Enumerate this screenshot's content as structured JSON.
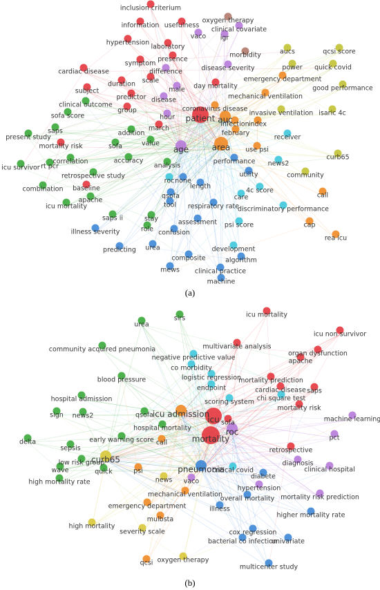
{
  "panels": [
    {
      "caption": "(a)",
      "nodes": [
        "inclusion criterium",
        "oxygen therapy",
        "information",
        "usefulness",
        "vaco",
        "igr",
        "clinical covariate",
        "aucs",
        "qcsi score",
        "hypertension",
        "laboratory",
        "morbidity",
        "power",
        "symptom",
        "presence",
        "quick covid",
        "cardiac disease",
        "difference",
        "disease severity",
        "emergency department",
        "duration",
        "scale",
        "male",
        "day mortality",
        "good performance",
        "subject",
        "predictor",
        "disease",
        "mechanical ventilation",
        "clinical outcome",
        "coronavirus disease",
        "invasive ventilation",
        "isaric 4c",
        "sofa score",
        "group",
        "hour",
        "patient",
        "auc",
        "infection",
        "index",
        "february",
        "saps",
        "addition",
        "march",
        "present study",
        "mortality risk",
        "sofa",
        "value",
        "age",
        "area",
        "use psi",
        "receiver",
        "curb65",
        "correlation",
        "accuracy",
        "analysis",
        "performance",
        "news2",
        "icu survivor",
        "rt pcr",
        "retrospective study",
        "roc",
        "none",
        "length",
        "utility",
        "community",
        "combination",
        "baseline",
        "qsofa",
        "4c score",
        "care",
        "call",
        "apache",
        "tool",
        "respiratory rate",
        "discriminatory performance",
        "icu mortality",
        "saps ii",
        "stay",
        "assessment",
        "psi score",
        "cap",
        "illness severity",
        "role",
        "confusion",
        "rea icu",
        "predicting",
        "urea",
        "development",
        "composite",
        "algorithm",
        "mews",
        "clinical practice",
        "machine"
      ]
    },
    {
      "caption": "(b)",
      "nodes": [
        "urea",
        "sirs",
        "icu mortality",
        "icu non survivor",
        "multivariate analysis",
        "community acquired pneumonia",
        "organ dysfunction",
        "negative predictive value",
        "co morbidity",
        "apache",
        "logistic regression",
        "blood pressure",
        "endpoint",
        "mortality prediction",
        "saps",
        "cardiac disease",
        "chi square test",
        "hospital admission",
        "scoring system",
        "sign",
        "news2",
        "qsofa",
        "icu admission",
        "icu",
        "sofa",
        "mortality risk",
        "machine learning",
        "hospital mortality",
        "roc",
        "pct",
        "early warning score",
        "call",
        "delta",
        "mortality",
        "retrospective",
        "sepsis",
        "curb65",
        "low risk group",
        "pneumonia",
        "diagnosis",
        "clinical hospital",
        "wave",
        "quick",
        "psi",
        "critical covid",
        "news",
        "vaco",
        "diabete",
        "high mortality rate",
        "hypertension",
        "mechanical ventilation",
        "overall mortality",
        "mortality risk prediction",
        "emergency department",
        "illness",
        "higher mortality rate",
        "high mortality",
        "mulbsta",
        "severity scale",
        "cox regression",
        "bacterial co infection",
        "univariate",
        "oxygen therapy",
        "qcsi",
        "multicenter study"
      ]
    }
  ]
}
